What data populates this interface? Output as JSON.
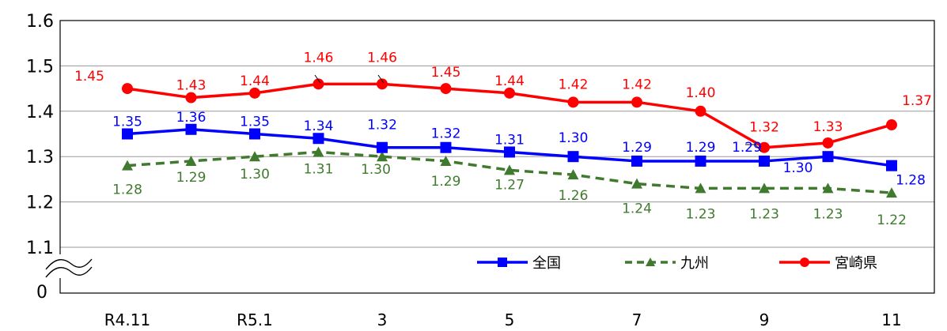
{
  "chart_data": {
    "type": "line",
    "title": "",
    "xlabel": "",
    "ylabel": "",
    "ylim": [
      1.1,
      1.6
    ],
    "axis_break": true,
    "axis_origin_label": "0",
    "y_ticks": [
      "1.1",
      "1.2",
      "1.3",
      "1.4",
      "1.5",
      "1.6"
    ],
    "grid": "horizontal",
    "legend_position": "bottom-right",
    "categories": [
      "R4.11",
      "",
      "R5.1",
      "",
      "3",
      "",
      "5",
      "",
      "7",
      "",
      "9",
      "",
      "11"
    ],
    "series": [
      {
        "name": "全国",
        "color": "#0000ff",
        "line_style": "solid",
        "marker": "square",
        "values": [
          1.35,
          1.36,
          1.35,
          1.34,
          1.32,
          1.32,
          1.31,
          1.3,
          1.29,
          1.29,
          1.29,
          1.3,
          1.28
        ],
        "labels": [
          "1.35",
          "1.36",
          "1.35",
          "1.34",
          "1.32",
          "1.32",
          "1.31",
          "1.30",
          "1.29",
          "1.29",
          "1.29",
          "1.30",
          "1.28"
        ]
      },
      {
        "name": "九州",
        "color": "#3f7a2e",
        "line_style": "dashed",
        "marker": "triangle",
        "values": [
          1.28,
          1.29,
          1.3,
          1.31,
          1.3,
          1.29,
          1.27,
          1.26,
          1.24,
          1.23,
          1.23,
          1.23,
          1.22
        ],
        "labels": [
          "1.28",
          "1.29",
          "1.30",
          "1.31",
          "1.30",
          "1.29",
          "1.27",
          "1.26",
          "1.24",
          "1.23",
          "1.23",
          "1.23",
          "1.22"
        ]
      },
      {
        "name": "宮崎県",
        "color": "#ff0000",
        "line_style": "solid",
        "marker": "circle",
        "values": [
          1.45,
          1.43,
          1.44,
          1.46,
          1.46,
          1.45,
          1.44,
          1.42,
          1.42,
          1.4,
          1.32,
          1.33,
          1.37
        ],
        "labels": [
          "1.45",
          "1.43",
          "1.44",
          "1.46",
          "1.46",
          "1.45",
          "1.44",
          "1.42",
          "1.42",
          "1.40",
          "1.32",
          "1.33",
          "1.37"
        ]
      }
    ]
  }
}
